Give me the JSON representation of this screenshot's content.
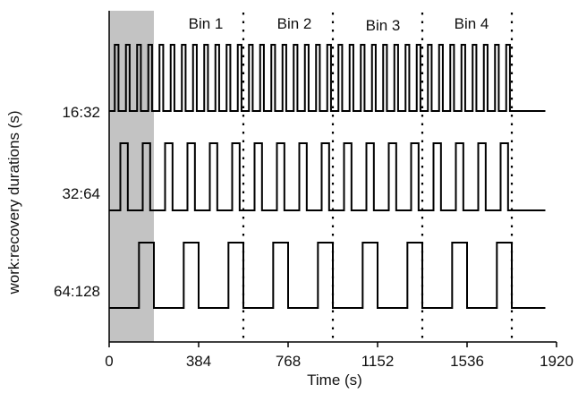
{
  "chart_data": {
    "type": "line",
    "title": "",
    "xlabel": "Time (s)",
    "ylabel": "work:recovery durations (s)",
    "xlim": [
      0,
      1920
    ],
    "xticks": [
      "0",
      "384",
      "768",
      "1152",
      "1536",
      "1920"
    ],
    "shaded_region": {
      "x_start": 0,
      "x_end": 192,
      "color": "#c3c3c3"
    },
    "bins": [
      {
        "label": "Bin 1",
        "x_start": 192,
        "x_end": 576
      },
      {
        "label": "Bin 2",
        "x_start": 576,
        "x_end": 960
      },
      {
        "label": "Bin 3",
        "x_start": 960,
        "x_end": 1344
      },
      {
        "label": "Bin 4",
        "x_start": 1344,
        "x_end": 1728
      }
    ],
    "bin_boundaries": [
      576,
      960,
      1344,
      1728
    ],
    "signals": [
      {
        "label": "16:32",
        "work": 16,
        "recovery": 32,
        "start": 24,
        "end": 1728
      },
      {
        "label": "32:64",
        "work": 32,
        "recovery": 64,
        "start": 48,
        "end": 1728
      },
      {
        "label": "64:128",
        "work": 64,
        "recovery": 128,
        "start": 128,
        "end": 1728
      }
    ],
    "series_end": 1872
  }
}
